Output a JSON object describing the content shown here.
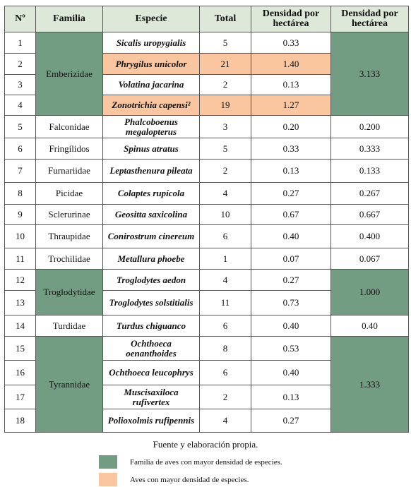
{
  "table": {
    "header": [
      "Nº",
      "Familia",
      "Especie",
      "Total",
      "Densidad por hectárea",
      "Densidad por hectárea"
    ],
    "families": [
      {
        "name": "Emberizidae",
        "density": "3.133",
        "color": "#739d83",
        "species": [
          {
            "n": "1",
            "name": "Sicalis uropygialis",
            "total": "5",
            "density": "0.33"
          },
          {
            "n": "2",
            "name": "Phrygilus unicolor",
            "total": "21",
            "density": "1.40",
            "color": "#f9c6a0"
          },
          {
            "n": "3",
            "name": "Volatina jacarina",
            "total": "2",
            "density": "0.13"
          },
          {
            "n": "4",
            "name": "Zonotrichia capensi²",
            "total": "19",
            "density": "1.27",
            "color": "#f9c6a0"
          }
        ]
      },
      {
        "name": "Falconidae",
        "density": "0.200",
        "species": [
          {
            "n": "5",
            "name": "Phalcoboenus megalopterus",
            "total": "3",
            "density": "0.20"
          }
        ]
      },
      {
        "name": "Fringílidos",
        "density": "0.333",
        "species": [
          {
            "n": "6",
            "name": "Spinus atratus",
            "total": "5",
            "density": "0.33"
          }
        ]
      },
      {
        "name": "Furnariidae",
        "density": "0.133",
        "species": [
          {
            "n": "7",
            "name": "Leptasthenura pileata",
            "total": "2",
            "density": "0.13"
          }
        ]
      },
      {
        "name": "Picidae",
        "density": "0.267",
        "species": [
          {
            "n": "8",
            "name": "Colaptes rupícola",
            "total": "4",
            "density": "0.27"
          }
        ]
      },
      {
        "name": "Sclerurinae",
        "density": "0.667",
        "species": [
          {
            "n": "9",
            "name": "Geositta saxicolina",
            "total": "10",
            "density": "0.67"
          }
        ]
      },
      {
        "name": "Thraupidae",
        "density": "0.400",
        "species": [
          {
            "n": "10",
            "name": "Conirostrum cinereum",
            "total": "6",
            "density": "0.40"
          }
        ]
      },
      {
        "name": "Trochilidae",
        "density": "0.067",
        "species": [
          {
            "n": "11",
            "name": "Metallura phoebe",
            "total": "1",
            "density": "0.07"
          }
        ]
      },
      {
        "name": "Troglodytidae",
        "density": "1.000",
        "color": "#739d83",
        "species": [
          {
            "n": "12",
            "name": "Troglodytes aedon",
            "total": "4",
            "density": "0.27"
          },
          {
            "n": "13",
            "name": "Troglodytes solstitialis",
            "total": "11",
            "density": "0.73"
          }
        ]
      },
      {
        "name": "Turdidae",
        "density": "0.40",
        "species": [
          {
            "n": "14",
            "name": "Turdus chiguanco",
            "total": "6",
            "density": "0.40"
          }
        ]
      },
      {
        "name": "Tyrannidae",
        "density": "1.333",
        "color": "#739d83",
        "species": [
          {
            "n": "15",
            "name": "Ochthoeca oenanthoides",
            "total": "8",
            "density": "0.53"
          },
          {
            "n": "16",
            "name": "Ochthoeca leucophrys",
            "total": "6",
            "density": "0.40"
          },
          {
            "n": "17",
            "name": "Muscisaxiloca rufivertex",
            "total": "2",
            "density": "0.13"
          },
          {
            "n": "18",
            "name": "Polioxolmis rufipennis",
            "total": "4",
            "density": "0.27"
          }
        ]
      }
    ]
  },
  "source": "Fuente y elaboración propia.",
  "legend": [
    {
      "label": "Familia de aves con mayor densidad de especies.",
      "color": "#739d83"
    },
    {
      "label": "Aves con mayor densidad de especies.",
      "color": "#f9c6a0"
    }
  ]
}
